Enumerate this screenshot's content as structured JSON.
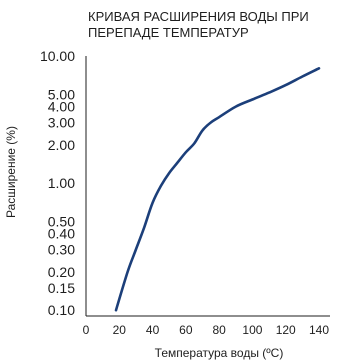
{
  "chart_data": {
    "type": "line",
    "title_lines": [
      "КРИВАЯ РАСШИРЕНИЯ ВОДЫ ПРИ",
      "ПЕРЕПАДЕ ТЕМПЕРАТУР"
    ],
    "xlabel": "Температура воды (ºC)",
    "ylabel": "Расширение (%)",
    "x_scale": "linear",
    "y_scale": "log",
    "xlim": [
      0,
      140
    ],
    "ylim": [
      0.09,
      10
    ],
    "grid": false,
    "x_ticks": [
      0,
      20,
      40,
      60,
      80,
      100,
      120,
      140
    ],
    "y_ticks": [
      {
        "value": 0.1,
        "label": "0.10"
      },
      {
        "value": 0.15,
        "label": "0.15"
      },
      {
        "value": 0.2,
        "label": "0.20"
      },
      {
        "value": 0.3,
        "label": "0.30"
      },
      {
        "value": 0.4,
        "label": "0.40"
      },
      {
        "value": 0.5,
        "label": "0.50"
      },
      {
        "value": 1,
        "label": "1.00"
      },
      {
        "value": 2,
        "label": "2.00"
      },
      {
        "value": 3,
        "label": "3.00"
      },
      {
        "value": 4,
        "label": "4.00"
      },
      {
        "value": 5,
        "label": "5.00"
      },
      {
        "value": 10,
        "label": "10.00"
      }
    ],
    "series": [
      {
        "color": "#1c3f7a",
        "points": [
          [
            18,
            0.1
          ],
          [
            25,
            0.2
          ],
          [
            30,
            0.3
          ],
          [
            35,
            0.45
          ],
          [
            40,
            0.7
          ],
          [
            45,
            0.95
          ],
          [
            50,
            1.2
          ],
          [
            55,
            1.45
          ],
          [
            60,
            1.75
          ],
          [
            65,
            2.05
          ],
          [
            70,
            2.6
          ],
          [
            75,
            3.0
          ],
          [
            80,
            3.3
          ],
          [
            90,
            4.0
          ],
          [
            100,
            4.55
          ],
          [
            110,
            5.15
          ],
          [
            120,
            5.9
          ],
          [
            130,
            6.9
          ],
          [
            140,
            8.0
          ]
        ]
      }
    ]
  }
}
